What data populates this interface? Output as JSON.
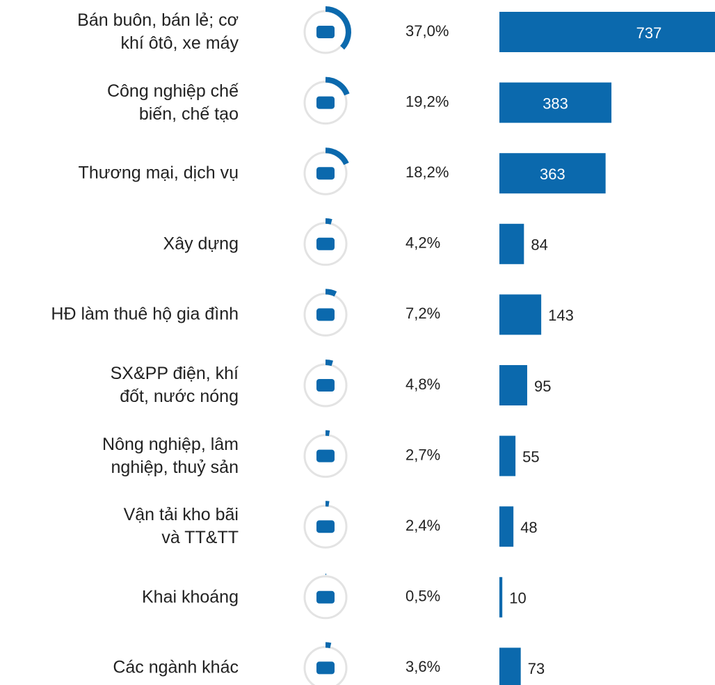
{
  "chart_data": {
    "type": "bar",
    "categories": [
      "Bán buôn, bán lẻ; cơ\nkhí ôtô, xe máy",
      "Công nghiệp chế\nbiến, chế tạo",
      "Thương mại, dịch vụ",
      "Xây dựng",
      "HĐ làm thuê hộ gia đình",
      "SX&PP điện, khí\nđốt, nước nóng",
      "Nông nghiệp, lâm\nnghiệp, thuỷ sản",
      "Vận tải kho bãi\nvà TT&TT",
      "Khai khoáng",
      "Các ngành khác"
    ],
    "values": [
      737,
      383,
      363,
      84,
      143,
      95,
      55,
      48,
      10,
      73
    ],
    "percent": [
      37.0,
      19.2,
      18.2,
      4.2,
      7.2,
      4.8,
      2.7,
      2.4,
      0.5,
      3.6
    ],
    "percent_labels": [
      "37,0%",
      "19,2%",
      "18,2%",
      "4,2%",
      "7,2%",
      "4,8%",
      "2,7%",
      "2,4%",
      "0,5%",
      "3,6%"
    ],
    "color": "#0b69ad"
  }
}
